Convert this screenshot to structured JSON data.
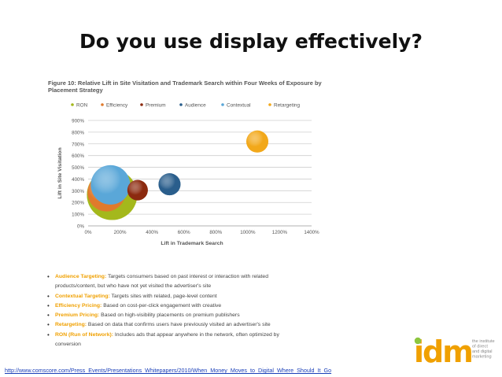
{
  "slide": {
    "title": "Do you use display effectively?",
    "source_url": "http://www.comscore.com/Press_Events/Presentations_Whitepapers/2010/When_Money_Moves_to_Digital_Where_Should_It_Go"
  },
  "figure": {
    "title": "Figure 10: Relative Lift in Site Visitation and Trademark Search within Four Weeks of Exposure by Placement Strategy"
  },
  "chart_data": {
    "type": "scatter",
    "xlabel": "Lift in Trademark Search",
    "ylabel": "Lift in Site Visitation",
    "xlim": [
      0,
      1400
    ],
    "ylim": [
      0,
      900
    ],
    "x_ticks": [
      "0%",
      "200%",
      "400%",
      "600%",
      "800%",
      "1000%",
      "1200%",
      "1400%"
    ],
    "y_ticks": [
      "0%",
      "100%",
      "200%",
      "300%",
      "400%",
      "500%",
      "600%",
      "700%",
      "800%",
      "900%"
    ],
    "grid": true,
    "legend_position": "top",
    "series": [
      {
        "name": "RON",
        "color": "#a4b81c",
        "x": 150,
        "y": 265,
        "bubble": 32
      },
      {
        "name": "Efficiency",
        "color": "#e07a2c",
        "x": 115,
        "y": 285,
        "bubble": 24
      },
      {
        "name": "Premium",
        "color": "#8c2a0f",
        "x": 310,
        "y": 305,
        "bubble": 13
      },
      {
        "name": "Audience",
        "color": "#2a5e8c",
        "x": 510,
        "y": 355,
        "bubble": 14
      },
      {
        "name": "Contextual",
        "color": "#5aa7d8",
        "x": 140,
        "y": 350,
        "bubble": 25
      },
      {
        "name": "Retargeting",
        "color": "#f2a81a",
        "x": 1060,
        "y": 720,
        "bubble": 14
      }
    ]
  },
  "bullets": [
    {
      "term": "Audience Targeting:",
      "text": " Targets consumers based on past interest or interaction with related products/content, but who have not yet visited the advertiser's site",
      "line2": "products/content, but who have not yet visited the advertiser's site",
      "line1": " Targets consumers based on past interest or interaction with related"
    },
    {
      "term": "Contextual Targeting:",
      "line1": " Targets sites with related, page-level content",
      "line2": ""
    },
    {
      "term": "Efficiency Pricing:",
      "line1": " Based on cost-per-click engagement with creative",
      "line2": ""
    },
    {
      "term": "Premium Pricing:",
      "line1": " Based on high-visibility placements on premium publishers",
      "line2": ""
    },
    {
      "term": "Retargeting:",
      "line1": " Based on data that confirms users have previously visited an advertiser's site",
      "line2": ""
    },
    {
      "term": "RON (Run of Network):",
      "line1": " Includes ads that appear anywhere in the network, often optimized by",
      "line2": "conversion"
    }
  ],
  "logo": {
    "mark": "idm",
    "lines": [
      "the institute",
      "of direct",
      "and digital",
      "marketing"
    ]
  },
  "colors": {
    "accent": "#f0a000",
    "logo_dot": "#8dc63f"
  }
}
